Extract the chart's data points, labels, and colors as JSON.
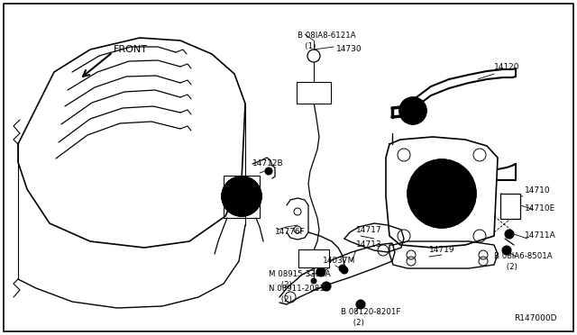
{
  "background_color": "#ffffff",
  "diagram_id": "R147000D",
  "fig_w": 6.4,
  "fig_h": 3.72,
  "dpi": 100,
  "labels": {
    "front": "FRONT",
    "08ia8": "B 08IA8-6121A\n   (1)",
    "14730": "14730",
    "14120": "14120",
    "14710": "14710",
    "14710e": "14710E",
    "14711a": "14711A",
    "14717": "14717",
    "14719": "14719",
    "14776f": "14776F",
    "14712b": "14712B",
    "14713": "14713",
    "14037m": "14037M",
    "m08915": "M 08915-3381A\n     (2)",
    "n08911": "N 08911-2081A\n     (2)",
    "b08ia6": "B 08IA6-8501A\n     (2)",
    "b08120": "B 08120-8201F\n     (2)",
    "diagram_id": "R147000D"
  }
}
